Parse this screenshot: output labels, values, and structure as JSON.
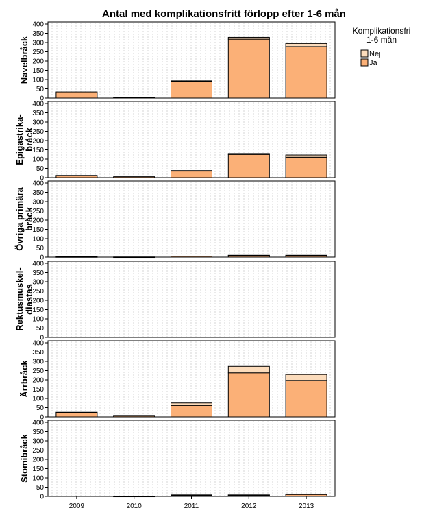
{
  "chart_data": {
    "type": "bar",
    "stacked": true,
    "title": "Antal med komplikationsfritt förlopp efter 1-6 mån",
    "categories": [
      "2009",
      "2010",
      "2011",
      "2012",
      "2013"
    ],
    "ylim": [
      0,
      400
    ],
    "yticks": [
      0,
      50,
      100,
      150,
      200,
      250,
      300,
      350,
      400
    ],
    "grid": true,
    "legend": {
      "title_lines": [
        "Komplikationsfri",
        "1-6 mån"
      ],
      "placement": "top-right",
      "items": [
        {
          "label": "Nej",
          "color": "#fcdcbc"
        },
        {
          "label": "Ja",
          "color": "#fbb077"
        }
      ]
    },
    "colors": {
      "Ja": "#fbb077",
      "Nej": "#fcdcbc",
      "edge": "#000000"
    },
    "panels": [
      {
        "label_lines": [
          "Navelbråck"
        ],
        "series": [
          {
            "name": "Ja",
            "values": [
              33,
              3,
              90,
              318,
              278
            ]
          },
          {
            "name": "Nej",
            "values": [
              0,
              0,
              3,
              10,
              17
            ]
          }
        ]
      },
      {
        "label_lines": [
          "Epigastrika-",
          "bråck"
        ],
        "series": [
          {
            "name": "Ja",
            "values": [
              12,
              5,
              35,
              125,
              110
            ]
          },
          {
            "name": "Nej",
            "values": [
              0,
              0,
              3,
              5,
              12
            ]
          }
        ]
      },
      {
        "label_lines": [
          "Övriga primära",
          "bråck"
        ],
        "series": [
          {
            "name": "Ja",
            "values": [
              2,
              1,
              5,
              9,
              9
            ]
          },
          {
            "name": "Nej",
            "values": [
              0,
              0,
              0,
              1,
              1
            ]
          }
        ]
      },
      {
        "label_lines": [
          "Rektusmuskel-",
          "diastas"
        ],
        "series": [
          {
            "name": "Ja",
            "values": [
              0,
              0,
              0,
              0,
              0
            ]
          },
          {
            "name": "Nej",
            "values": [
              0,
              0,
              0,
              0,
              0
            ]
          }
        ]
      },
      {
        "label_lines": [
          "Ärrbråck"
        ],
        "series": [
          {
            "name": "Ja",
            "values": [
              22,
              7,
              62,
              238,
              197
            ]
          },
          {
            "name": "Nej",
            "values": [
              3,
              1,
              13,
              35,
              32
            ]
          }
        ]
      },
      {
        "label_lines": [
          "Stomibråck"
        ],
        "series": [
          {
            "name": "Ja",
            "values": [
              0,
              1,
              7,
              7,
              11
            ]
          },
          {
            "name": "Nej",
            "values": [
              0,
              0,
              1,
              1,
              2
            ]
          }
        ]
      }
    ]
  }
}
